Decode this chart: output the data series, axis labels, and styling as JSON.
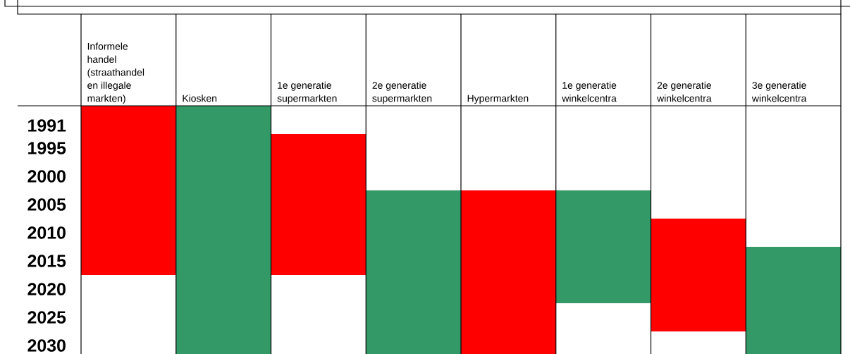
{
  "chart_data": {
    "type": "bar",
    "categories": [
      "Informele handel (straathandel en illegale markten)",
      "Kiosken",
      "1e generatie supermarkten",
      "2e generatie supermarkten",
      "Hypermarkten",
      "1e generatie winkelcentra",
      "2e generatie winkelcentra",
      "3e generatie winkelcentra"
    ],
    "base": [
      1987.5,
      1987.5,
      1992.5,
      2002.5,
      2002.5,
      2002.5,
      2007.5,
      2012.5
    ],
    "values": [
      30,
      44,
      25,
      29,
      29,
      20,
      20,
      19
    ],
    "colors": [
      "#ff0000",
      "#339966",
      "#ff0000",
      "#339966",
      "#ff0000",
      "#339966",
      "#ff0000",
      "#339966"
    ],
    "ylim": [
      2031.5,
      1987.5
    ],
    "yticks": [
      1991,
      1995,
      2000,
      2005,
      2010,
      2015,
      2020,
      2025,
      2030
    ],
    "grid": "x"
  }
}
